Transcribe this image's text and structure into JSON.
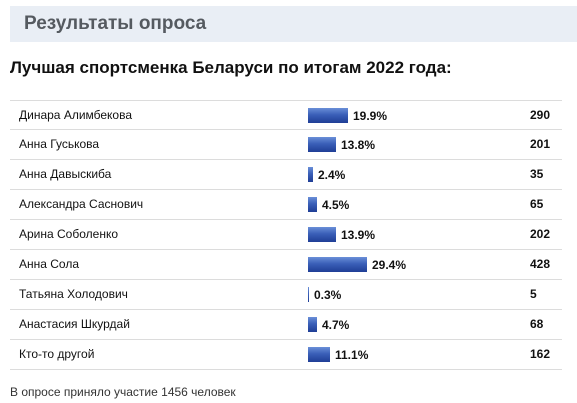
{
  "header": {
    "title": "Результаты опроса"
  },
  "poll": {
    "question": "Лучшая спортсменка Беларуси по итогам 2022 года:",
    "bar_color": "#2f52ab",
    "options": [
      {
        "name": "Динара Алимбекова",
        "percent": 19.9,
        "percent_label": "19.9%",
        "votes": "290"
      },
      {
        "name": "Анна Гуськова",
        "percent": 13.8,
        "percent_label": "13.8%",
        "votes": "201"
      },
      {
        "name": "Анна Давыскиба",
        "percent": 2.4,
        "percent_label": "2.4%",
        "votes": "35"
      },
      {
        "name": "Александра Саснович",
        "percent": 4.5,
        "percent_label": "4.5%",
        "votes": "65"
      },
      {
        "name": "Арина Соболенко",
        "percent": 13.9,
        "percent_label": "13.9%",
        "votes": "202"
      },
      {
        "name": "Анна Сола",
        "percent": 29.4,
        "percent_label": "29.4%",
        "votes": "428"
      },
      {
        "name": "Татьяна Холодович",
        "percent": 0.3,
        "percent_label": "0.3%",
        "votes": "5"
      },
      {
        "name": "Анастасия Шкурдай",
        "percent": 4.7,
        "percent_label": "4.7%",
        "votes": "68"
      },
      {
        "name": "Кто-то другой",
        "percent": 11.1,
        "percent_label": "11.1%",
        "votes": "162"
      }
    ],
    "footer": "В опросе приняло участие 1456 человек"
  }
}
